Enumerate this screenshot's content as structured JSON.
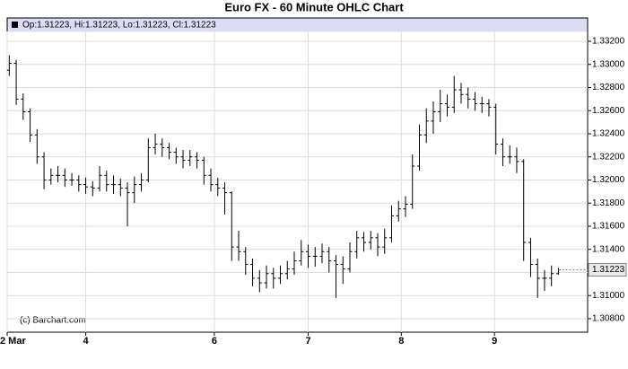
{
  "chart_data": {
    "type": "ohlc",
    "title": "Euro FX - 60 Minute OHLC Chart",
    "legend": "Op:1.31223, Hi:1.31223, Lo:1.31223, Cl:1.31223",
    "watermark": "(c) Barchart.com",
    "color": "#000000",
    "grid": true,
    "xlim": [
      -0.3,
      83.2
    ],
    "xticks": [
      {
        "value": -0.3,
        "label": "2 Mar"
      },
      {
        "value": 11,
        "label": "4"
      },
      {
        "value": 29.5,
        "label": "6"
      },
      {
        "value": 43,
        "label": "7"
      },
      {
        "value": 56.4,
        "label": "8"
      },
      {
        "value": 69.8,
        "label": "9"
      }
    ],
    "ylim": [
      1.30683,
      1.33402
    ],
    "yticks": [
      {
        "value": 1.308,
        "label": "1.30800"
      },
      {
        "value": 1.31,
        "label": "1.31000"
      },
      {
        "value": 1.312,
        "label": "1.31200"
      },
      {
        "value": 1.314,
        "label": "1.31400"
      },
      {
        "value": 1.316,
        "label": "1.31600"
      },
      {
        "value": 1.318,
        "label": "1.31800"
      },
      {
        "value": 1.32,
        "label": "1.32000"
      },
      {
        "value": 1.322,
        "label": "1.32200"
      },
      {
        "value": 1.324,
        "label": "1.32400"
      },
      {
        "value": 1.326,
        "label": "1.32600"
      },
      {
        "value": 1.328,
        "label": "1.32800"
      },
      {
        "value": 1.33,
        "label": "1.33000"
      },
      {
        "value": 1.332,
        "label": "1.33200"
      }
    ],
    "open": [
      1.3295,
      1.3301,
      1.327,
      1.3259,
      1.3239,
      1.322,
      1.32,
      1.3204,
      1.3204,
      1.32,
      1.32,
      1.3196,
      1.3194,
      1.3193,
      1.3204,
      1.3196,
      1.3196,
      1.3193,
      1.3189,
      1.3196,
      1.32,
      1.3228,
      1.3231,
      1.3228,
      1.3224,
      1.322,
      1.3217,
      1.322,
      1.3217,
      1.3204,
      1.3196,
      1.3193,
      1.3189,
      1.3142,
      1.3138,
      1.3127,
      1.3115,
      1.3111,
      1.3119,
      1.3115,
      1.3119,
      1.3123,
      1.313,
      1.3138,
      1.3134,
      1.3134,
      1.3138,
      1.313,
      1.3127,
      1.3123,
      1.3138,
      1.315,
      1.3146,
      1.315,
      1.3142,
      1.315,
      1.3169,
      1.3175,
      1.3179,
      1.3212,
      1.3239,
      1.3251,
      1.3259,
      1.3266,
      1.3263,
      1.3278,
      1.3274,
      1.327,
      1.3266,
      1.3266,
      1.3263,
      1.3231,
      1.322,
      1.322,
      1.3216,
      1.3146,
      1.3127,
      1.3115,
      1.3115,
      1.3119
    ],
    "high": [
      1.3308,
      1.3304,
      1.3275,
      1.3262,
      1.3244,
      1.3224,
      1.321,
      1.3212,
      1.321,
      1.3206,
      1.3204,
      1.3202,
      1.3199,
      1.3212,
      1.3208,
      1.3204,
      1.3201,
      1.3198,
      1.3203,
      1.3206,
      1.3236,
      1.324,
      1.3236,
      1.3232,
      1.3228,
      1.3226,
      1.3226,
      1.3224,
      1.322,
      1.321,
      1.3202,
      1.3198,
      1.319,
      1.3156,
      1.3142,
      1.3132,
      1.3122,
      1.3126,
      1.3124,
      1.3126,
      1.313,
      1.3138,
      1.3148,
      1.3144,
      1.3142,
      1.3145,
      1.3142,
      1.3135,
      1.3134,
      1.3146,
      1.3156,
      1.3155,
      1.3156,
      1.3154,
      1.3158,
      1.3178,
      1.3182,
      1.3186,
      1.3222,
      1.3248,
      1.3262,
      1.3268,
      1.3278,
      1.3274,
      1.329,
      1.3284,
      1.328,
      1.3276,
      1.3272,
      1.327,
      1.3266,
      1.3236,
      1.323,
      1.3228,
      1.3218,
      1.315,
      1.3132,
      1.3122,
      1.3126,
      1.3124
    ],
    "low": [
      1.329,
      1.3265,
      1.3252,
      1.3233,
      1.3214,
      1.3192,
      1.3196,
      1.3198,
      1.3194,
      1.3195,
      1.319,
      1.3188,
      1.3186,
      1.319,
      1.319,
      1.3188,
      1.3186,
      1.316,
      1.318,
      1.319,
      1.3198,
      1.3222,
      1.322,
      1.3218,
      1.3214,
      1.321,
      1.3212,
      1.321,
      1.3196,
      1.319,
      1.3186,
      1.317,
      1.313,
      1.313,
      1.3118,
      1.3108,
      1.3103,
      1.3106,
      1.3106,
      1.311,
      1.3114,
      1.3118,
      1.3126,
      1.3124,
      1.3125,
      1.3128,
      1.312,
      1.3098,
      1.311,
      1.312,
      1.3132,
      1.3138,
      1.314,
      1.3134,
      1.3136,
      1.3146,
      1.3164,
      1.3168,
      1.3175,
      1.3208,
      1.3232,
      1.324,
      1.325,
      1.3255,
      1.3258,
      1.3266,
      1.3262,
      1.326,
      1.3258,
      1.3255,
      1.3222,
      1.3212,
      1.3214,
      1.3206,
      1.313,
      1.3116,
      1.3098,
      1.3104,
      1.3108,
      1.3118
    ],
    "close": [
      1.3301,
      1.327,
      1.3259,
      1.3239,
      1.322,
      1.32,
      1.3204,
      1.3204,
      1.32,
      1.32,
      1.3196,
      1.3194,
      1.3193,
      1.3204,
      1.3196,
      1.3196,
      1.3193,
      1.3189,
      1.3196,
      1.32,
      1.3228,
      1.3231,
      1.3228,
      1.3224,
      1.322,
      1.3217,
      1.322,
      1.3217,
      1.3204,
      1.3196,
      1.3193,
      1.3189,
      1.3142,
      1.3138,
      1.3127,
      1.3115,
      1.3111,
      1.3119,
      1.3115,
      1.3119,
      1.3123,
      1.313,
      1.3138,
      1.3134,
      1.3134,
      1.3138,
      1.313,
      1.3127,
      1.3123,
      1.3138,
      1.315,
      1.3146,
      1.315,
      1.3142,
      1.315,
      1.3169,
      1.3175,
      1.3179,
      1.3212,
      1.3239,
      1.3251,
      1.3259,
      1.3266,
      1.3263,
      1.3278,
      1.3274,
      1.327,
      1.3266,
      1.3266,
      1.3263,
      1.3231,
      1.322,
      1.322,
      1.3216,
      1.3146,
      1.3127,
      1.3115,
      1.3115,
      1.3119,
      1.31223
    ]
  }
}
